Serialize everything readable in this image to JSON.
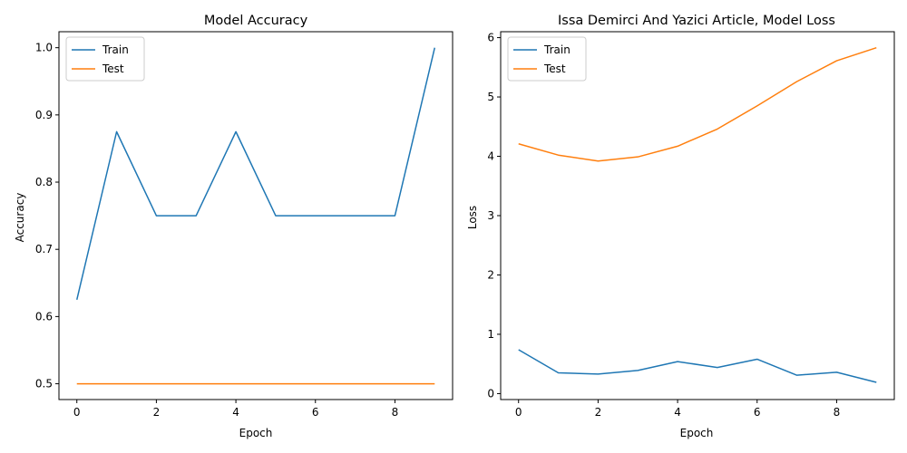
{
  "colors": {
    "train": "#1f77b4",
    "test": "#ff7f0e"
  },
  "chart_data": [
    {
      "type": "line",
      "title": "Model Accuracy",
      "xlabel": "Epoch",
      "ylabel": "Accuracy",
      "xlim": [
        -0.45,
        9.45
      ],
      "ylim": [
        0.4765,
        1.0238
      ],
      "xticks": [
        "0",
        "2",
        "4",
        "6",
        "8"
      ],
      "yticks": [
        "0.5",
        "0.6",
        "0.7",
        "0.8",
        "0.9",
        "1.0"
      ],
      "legend": "top-left",
      "grid": false,
      "x": [
        0,
        1,
        2,
        3,
        4,
        5,
        6,
        7,
        8,
        9
      ],
      "series": [
        {
          "name": "Train",
          "values": [
            0.625,
            0.875,
            0.75,
            0.75,
            0.875,
            0.75,
            0.75,
            0.75,
            0.75,
            1.0
          ]
        },
        {
          "name": "Test",
          "values": [
            0.5,
            0.5,
            0.5,
            0.5,
            0.5,
            0.5,
            0.5,
            0.5,
            0.5,
            0.5
          ]
        }
      ]
    },
    {
      "type": "line",
      "title": "Issa Demirci And Yazici Article, Model Loss",
      "xlabel": "Epoch",
      "ylabel": "Loss",
      "xlim": [
        -0.45,
        9.45
      ],
      "ylim": [
        -0.1,
        6.1
      ],
      "xticks": [
        "0",
        "2",
        "4",
        "6",
        "8"
      ],
      "yticks": [
        "0",
        "1",
        "2",
        "3",
        "4",
        "5",
        "6"
      ],
      "legend": "top-left",
      "grid": false,
      "x": [
        0,
        1,
        2,
        3,
        4,
        5,
        6,
        7,
        8,
        9
      ],
      "series": [
        {
          "name": "Train",
          "values": [
            0.74,
            0.35,
            0.33,
            0.39,
            0.54,
            0.44,
            0.58,
            0.31,
            0.36,
            0.19
          ]
        },
        {
          "name": "Test",
          "values": [
            4.21,
            4.02,
            3.92,
            3.99,
            4.17,
            4.46,
            4.85,
            5.26,
            5.61,
            5.83
          ]
        }
      ]
    }
  ]
}
